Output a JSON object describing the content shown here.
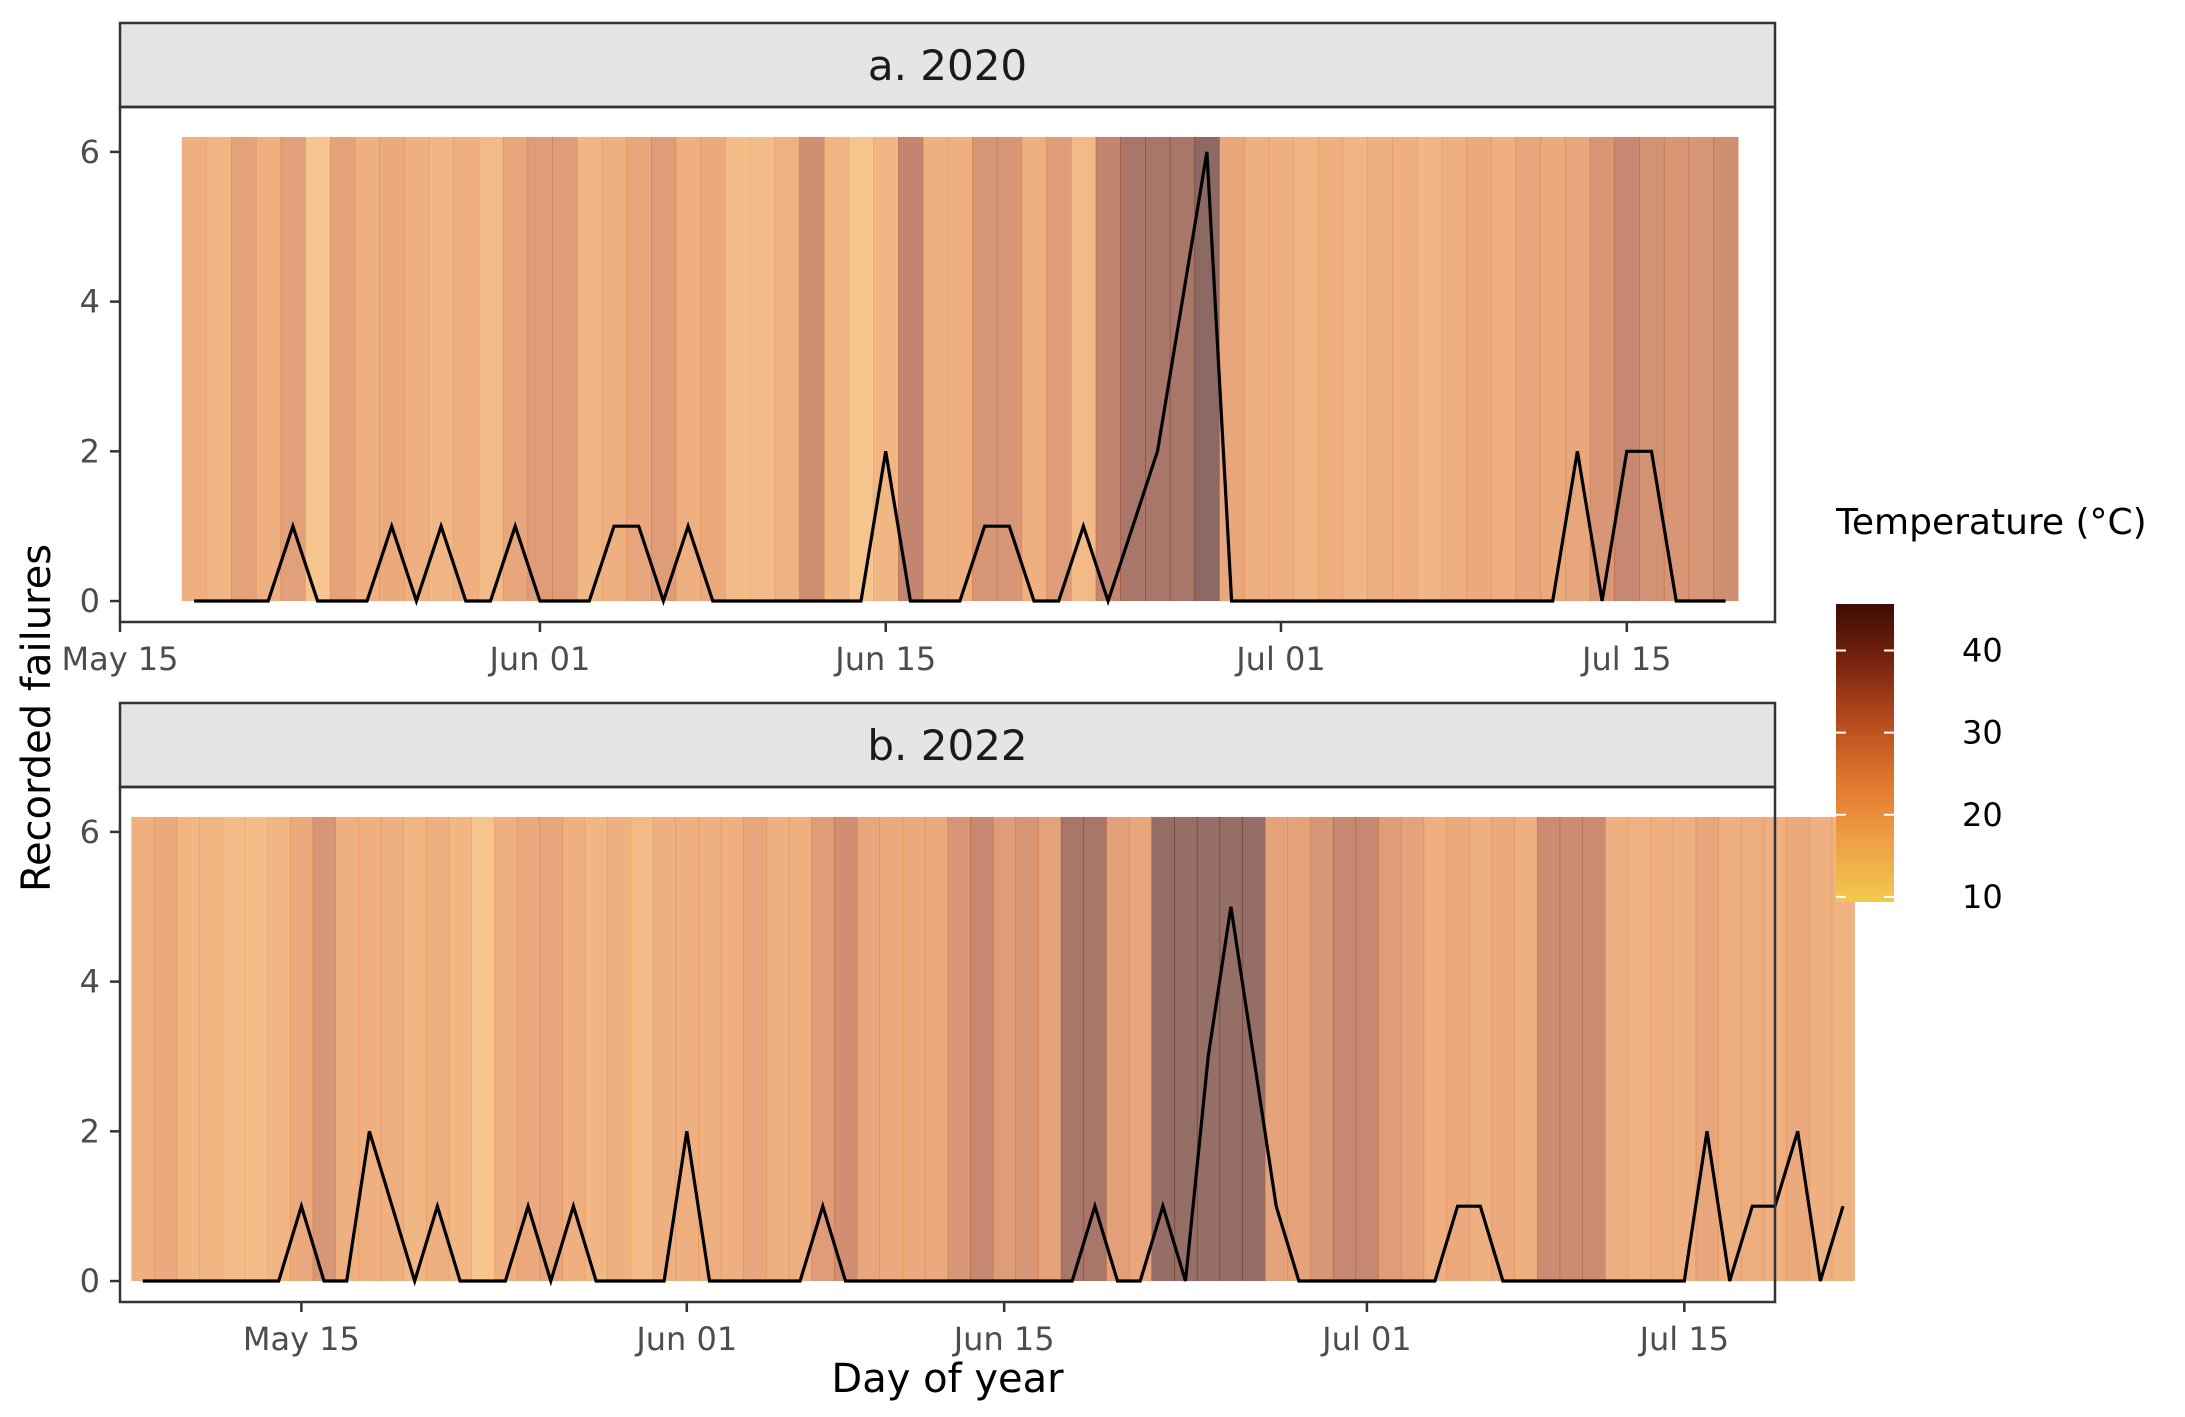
{
  "chart_data": {
    "type": "line",
    "xlabel": "Day of year",
    "ylabel": "Recorded failures",
    "ylim": [
      0,
      6
    ],
    "yticks": [
      0,
      2,
      4,
      6
    ],
    "grid": false,
    "legend": {
      "title": "Temperature (°C)",
      "placement": "right",
      "ticks": [
        10,
        20,
        30,
        40
      ],
      "range": [
        8,
        47
      ],
      "colors": [
        "#f2c94c",
        "#f0a048",
        "#e0782e",
        "#b84d1e",
        "#7a2410",
        "#3d0c02"
      ]
    },
    "panels": [
      {
        "strip": "a. 2020",
        "x_start": "2020-05-18",
        "x_ticks": [
          "May 15",
          "Jun 01",
          "Jun 15",
          "Jul 01",
          "Jul 15"
        ],
        "x_tick_dates": [
          "2020-05-15",
          "2020-06-01",
          "2020-06-15",
          "2020-07-01",
          "2020-07-15"
        ],
        "x_range": [
          "2020-05-15",
          "2020-07-21"
        ],
        "series": [
          {
            "values": [
              0,
              0,
              0,
              0,
              1,
              0,
              0,
              0,
              1,
              0,
              1,
              0,
              0,
              1,
              0,
              0,
              0,
              1,
              1,
              0,
              1,
              0,
              0,
              0,
              0,
              0,
              0,
              0,
              2,
              0,
              0,
              0,
              1,
              1,
              0,
              0,
              1,
              0,
              1,
              2,
              4,
              6,
              0,
              0,
              0,
              0,
              0,
              0,
              0,
              0,
              0,
              0,
              0,
              0,
              0,
              0,
              2,
              0,
              2,
              2,
              0,
              0,
              0
            ]
          }
        ],
        "temperature": [
          22,
          20,
          26,
          22,
          27,
          16,
          26,
          22,
          24,
          22,
          20,
          22,
          19,
          25,
          28,
          28,
          20,
          22,
          25,
          28,
          22,
          24,
          18,
          18,
          21,
          32,
          20,
          16,
          20,
          35,
          22,
          22,
          30,
          30,
          22,
          28,
          19,
          35,
          40,
          40,
          40,
          46,
          25,
          22,
          22,
          20,
          22,
          20,
          22,
          22,
          20,
          22,
          24,
          22,
          25,
          24,
          25,
          30,
          34,
          31,
          30,
          30,
          32
        ]
      },
      {
        "strip": "b. 2022",
        "x_start": "2022-05-08",
        "x_ticks": [
          "May 15",
          "Jun 01",
          "Jun 15",
          "Jul 01",
          "Jul 15"
        ],
        "x_tick_dates": [
          "2022-05-15",
          "2022-06-01",
          "2022-06-15",
          "2022-07-01",
          "2022-07-15"
        ],
        "x_range": [
          "2022-05-07",
          "2022-07-19"
        ],
        "series": [
          {
            "values": [
              0,
              0,
              0,
              0,
              0,
              0,
              0,
              1,
              0,
              0,
              2,
              1,
              0,
              1,
              0,
              0,
              0,
              1,
              0,
              1,
              0,
              0,
              0,
              0,
              2,
              0,
              0,
              0,
              0,
              0,
              1,
              0,
              0,
              0,
              0,
              0,
              0,
              0,
              0,
              0,
              0,
              0,
              1,
              0,
              0,
              1,
              0,
              3,
              5,
              3,
              1,
              0,
              0,
              0,
              0,
              0,
              0,
              0,
              1,
              1,
              0,
              0,
              0,
              0,
              0,
              0,
              0,
              0,
              0,
              2,
              0,
              1,
              1,
              2,
              0,
              1
            ]
          }
        ],
        "temperature": [
          22,
          24,
          20,
          20,
          18,
          18,
          20,
          24,
          30,
          22,
          22,
          22,
          20,
          22,
          20,
          16,
          22,
          24,
          25,
          22,
          20,
          22,
          19,
          22,
          22,
          22,
          22,
          25,
          22,
          22,
          28,
          32,
          25,
          24,
          24,
          24,
          30,
          34,
          28,
          30,
          26,
          40,
          40,
          27,
          25,
          44,
          44,
          44,
          44,
          44,
          26,
          26,
          30,
          34,
          34,
          28,
          26,
          22,
          24,
          22,
          24,
          22,
          33,
          33,
          33,
          22,
          21,
          22,
          22,
          25,
          22,
          23,
          22,
          24,
          22,
          21
        ]
      }
    ]
  }
}
